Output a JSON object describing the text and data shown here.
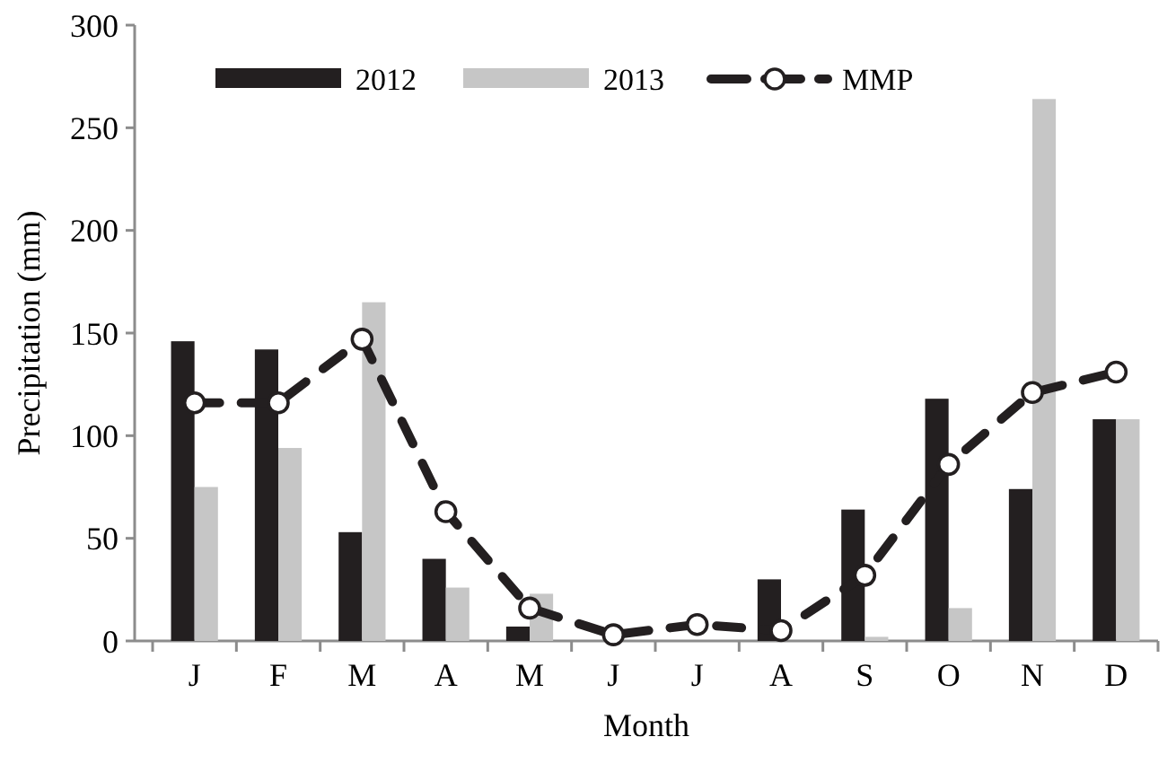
{
  "chart_data": {
    "type": "bar",
    "xlabel": "Month",
    "ylabel": "Precipitation  (mm)",
    "categories": [
      "J",
      "F",
      "M",
      "A",
      "M",
      "J",
      "J",
      "A",
      "S",
      "O",
      "N",
      "D"
    ],
    "series": [
      {
        "name": "2012",
        "color": "#231f20",
        "values": [
          146,
          142,
          53,
          40,
          7,
          0,
          0,
          30,
          64,
          118,
          74,
          108
        ]
      },
      {
        "name": "2013",
        "color": "#c6c6c6",
        "values": [
          75,
          94,
          165,
          26,
          23,
          0,
          0,
          null,
          2,
          16,
          264,
          108
        ]
      },
      {
        "name": "MMP",
        "type": "line",
        "color": "#231f20",
        "marker": "circle",
        "line_style": "dashed",
        "values": [
          116,
          116,
          147,
          63,
          16,
          3,
          8,
          5,
          32,
          86,
          121,
          131
        ]
      }
    ],
    "ylim": [
      0,
      300
    ],
    "yticks": [
      0,
      50,
      100,
      150,
      200,
      250,
      300
    ],
    "legend": "top",
    "grid": false
  }
}
